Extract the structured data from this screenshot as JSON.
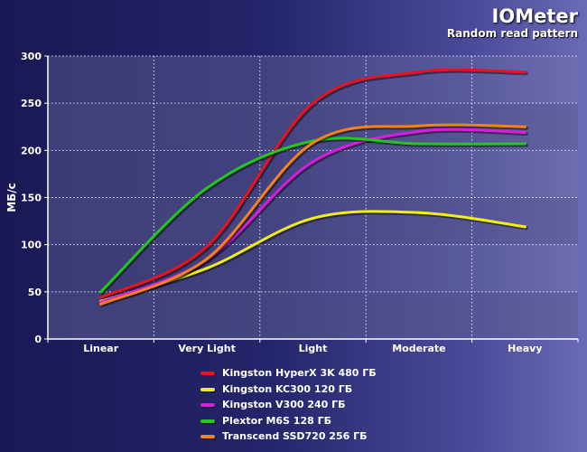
{
  "header": {
    "title": "IOMeter",
    "subtitle": "Random read pattern"
  },
  "chart_data": {
    "type": "line",
    "title": "IOMeter",
    "subtitle": "Random read pattern",
    "xlabel": "",
    "ylabel": "МБ/с",
    "categories": [
      "Linear",
      "Very Light",
      "Light",
      "Moderate",
      "Heavy"
    ],
    "ylim": [
      0,
      300
    ],
    "yticks": [
      0,
      50,
      100,
      150,
      200,
      250,
      300
    ],
    "grid": true,
    "legend_position": "bottom",
    "series": [
      {
        "name": "Kingston HyperX 3K 480 ГБ",
        "color": "#e8131c",
        "values": [
          44,
          98,
          250,
          283,
          283
        ]
      },
      {
        "name": "Kingston KC300 120 ГБ",
        "color": "#f1ee16",
        "values": [
          40,
          75,
          128,
          134,
          119
        ]
      },
      {
        "name": "Kingston V300 240 ГБ",
        "color": "#df1ae0",
        "values": [
          39,
          84,
          188,
          220,
          219
        ]
      },
      {
        "name": "Plextor M6S 128 ГБ",
        "color": "#22c71b",
        "values": [
          50,
          160,
          210,
          207,
          207
        ]
      },
      {
        "name": "Transcend SSD720 256 ГБ",
        "color": "#f7811a",
        "values": [
          37,
          85,
          208,
          226,
          225
        ]
      }
    ]
  }
}
